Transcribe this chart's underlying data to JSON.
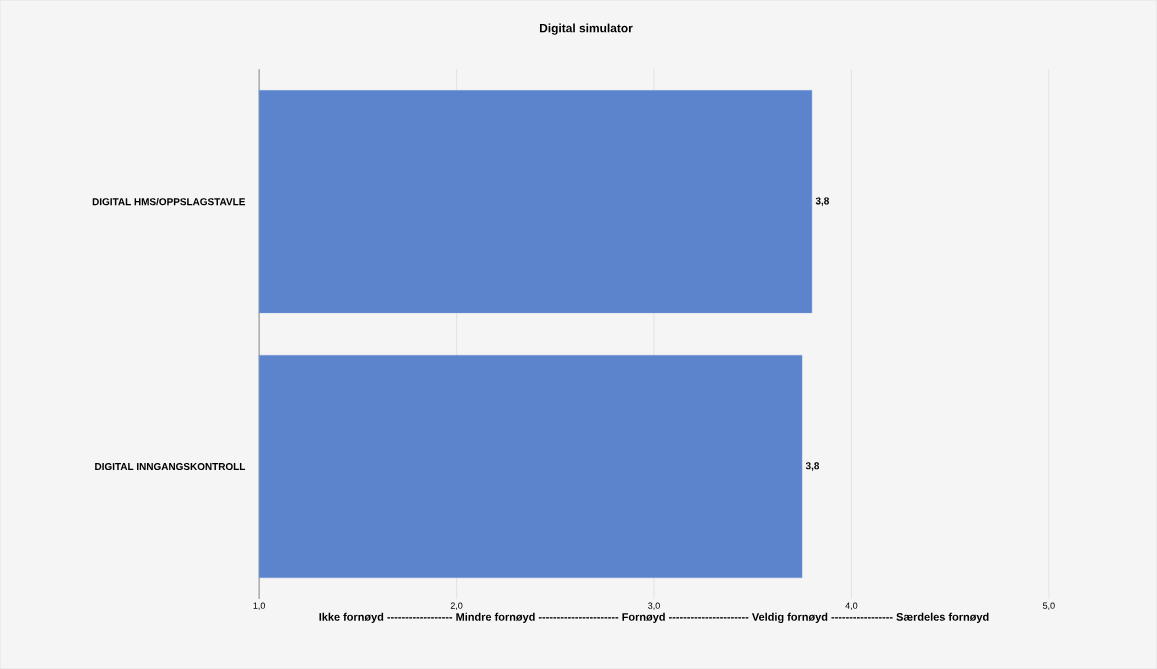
{
  "chart_data": {
    "type": "bar",
    "orientation": "horizontal",
    "title": "Digital simulator",
    "xlabel": "Ikke fornøyd ------------------ Mindre fornøyd ---------------------- Fornøyd ---------------------- Veldig fornøyd ----------------- Særdeles fornøyd",
    "categories": [
      "DIGITAL HMS/OPPSLAGSTAVLE",
      "DIGITAL INNGANGSKONTROLL"
    ],
    "values": [
      3.8,
      3.75
    ],
    "value_labels": [
      "3,8",
      "3,8"
    ],
    "color": "#5b84cc",
    "xlim": [
      1,
      5
    ],
    "xticks": [
      {
        "value": 1,
        "label": "1,0"
      },
      {
        "value": 2,
        "label": "2,0"
      },
      {
        "value": 3,
        "label": "3,0"
      },
      {
        "value": 4,
        "label": "4,0"
      },
      {
        "value": 5,
        "label": "5,0"
      }
    ],
    "grid": "x"
  }
}
